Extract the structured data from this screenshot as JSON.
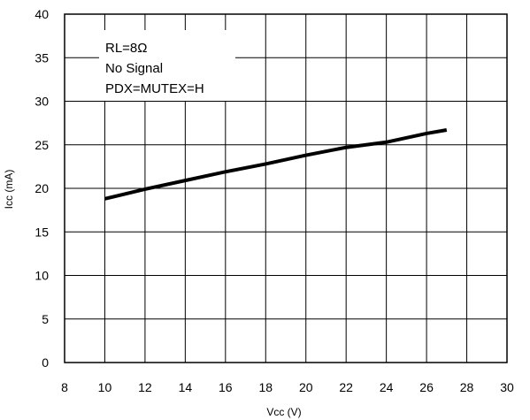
{
  "chart_data": {
    "type": "line",
    "title": "",
    "xlabel": "Vcc (V)",
    "ylabel": "Icc (mA)",
    "xlim": [
      8,
      30
    ],
    "ylim": [
      0,
      40
    ],
    "xticks": [
      8,
      10,
      12,
      14,
      16,
      18,
      20,
      22,
      24,
      26,
      28,
      30
    ],
    "yticks": [
      0,
      5,
      10,
      15,
      20,
      25,
      30,
      35,
      40
    ],
    "grid": true,
    "annotations": [
      "RL=8Ω",
      "No  Signal",
      "PDX=MUTEX=H"
    ],
    "series": [
      {
        "x": [
          10,
          12,
          14,
          16,
          18,
          20,
          22,
          24,
          26,
          27
        ],
        "y": [
          18.8,
          19.9,
          20.9,
          21.9,
          22.8,
          23.8,
          24.7,
          25.3,
          26.3,
          26.7
        ],
        "color": "#000000"
      }
    ]
  }
}
